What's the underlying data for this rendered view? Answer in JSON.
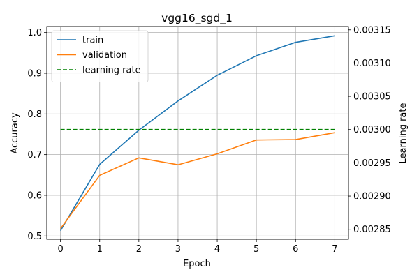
{
  "chart_data": {
    "type": "line",
    "title": "vgg16_sgd_1",
    "xlabel": "Epoch",
    "ylabel": "Accuracy",
    "y2label": "Learning rate",
    "x": [
      0,
      1,
      2,
      3,
      4,
      5,
      6,
      7
    ],
    "xlim": [
      -0.35,
      7.35
    ],
    "ylim": [
      0.4919,
      1.0149
    ],
    "y2lim": [
      0.002835,
      0.003155
    ],
    "xticks": [
      "0",
      "1",
      "2",
      "3",
      "4",
      "5",
      "6",
      "7"
    ],
    "yticks": [
      "0.5",
      "0.6",
      "0.7",
      "0.8",
      "0.9",
      "1.0"
    ],
    "y2ticks": [
      "0.00285",
      "0.00290",
      "0.00295",
      "0.00300",
      "0.00305",
      "0.00310",
      "0.00315"
    ],
    "grid": true,
    "legend_position": "top-left",
    "series": [
      {
        "name": "train",
        "axis": "left",
        "color": "#1f77b4",
        "style": "solid",
        "values": [
          0.513,
          0.676,
          0.76,
          0.832,
          0.895,
          0.943,
          0.976,
          0.992
        ]
      },
      {
        "name": "validation",
        "axis": "left",
        "color": "#ff7f0e",
        "style": "solid",
        "values": [
          0.518,
          0.649,
          0.692,
          0.675,
          0.702,
          0.736,
          0.737,
          0.754
        ]
      },
      {
        "name": "learning rate",
        "axis": "right",
        "color": "#008000",
        "style": "dashed",
        "values": [
          0.003,
          0.003,
          0.003,
          0.003,
          0.003,
          0.003,
          0.003,
          0.003
        ]
      }
    ]
  }
}
